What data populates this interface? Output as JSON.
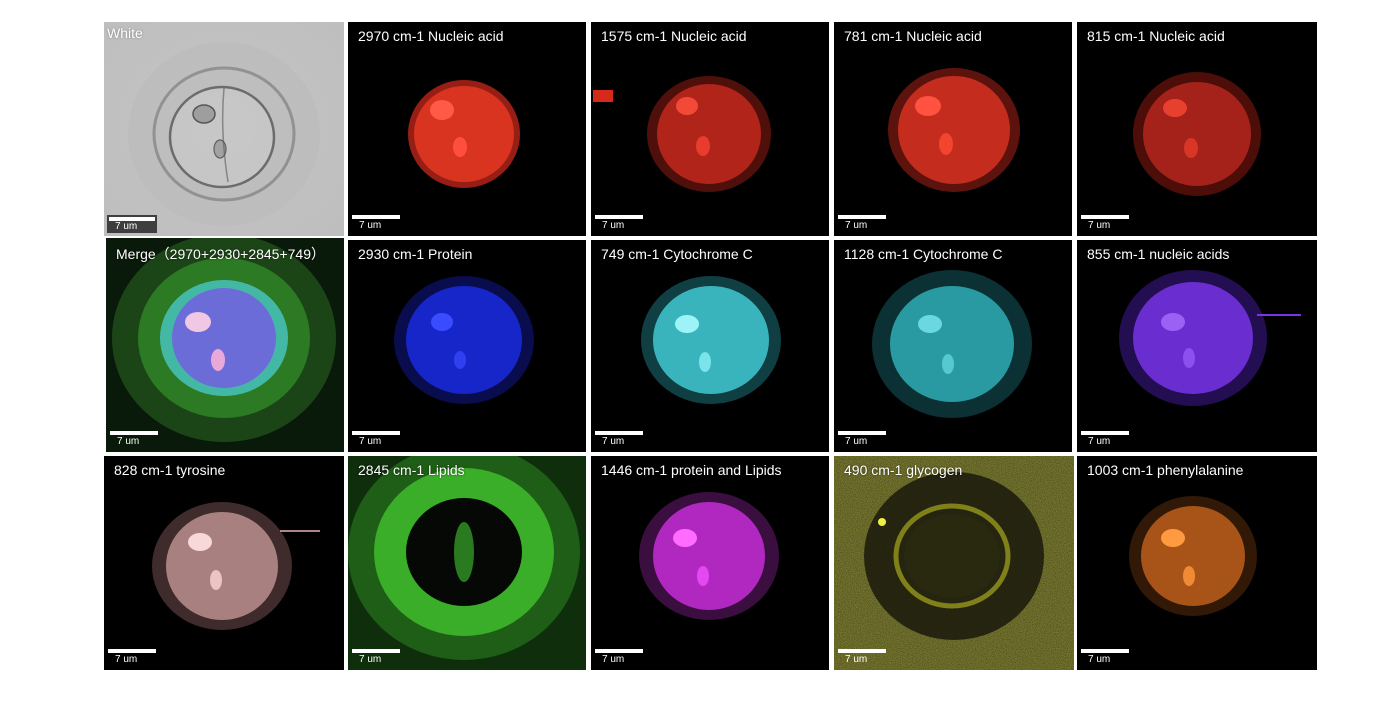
{
  "scale_label": "7 um",
  "panels": [
    {
      "label": "White",
      "color": "#c8c8c8"
    },
    {
      "label": "2970 cm-1 Nucleic acid",
      "color": "#e0301e"
    },
    {
      "label": "1575 cm-1 Nucleic acid",
      "color": "#d42a1c"
    },
    {
      "label": "781 cm-1 Nucleic acid",
      "color": "#e0301e"
    },
    {
      "label": "815 cm-1 Nucleic acid",
      "color": "#c8281c"
    },
    {
      "label": "Merge（2970+2930+2845+749）",
      "color": "#6a6ae0"
    },
    {
      "label": "2930 cm-1 Protein",
      "color": "#1e2ae6"
    },
    {
      "label": "749 cm-1 Cytochrome C",
      "color": "#3cc4cc"
    },
    {
      "label": "1128 cm-1 Cytochrome C",
      "color": "#2eb4bc"
    },
    {
      "label": "855 cm-1 nucleic acids",
      "color": "#7a34e0"
    },
    {
      "label": "828 cm-1 tyrosine",
      "color": "#d8a8a8"
    },
    {
      "label": "2845 cm-1 Lipids",
      "color": "#3cbc2a"
    },
    {
      "label": "1446 cm-1 protein and Lipids",
      "color": "#c830d8"
    },
    {
      "label": "490 cm-1 glycogen",
      "color": "#c8c820"
    },
    {
      "label": "1003 cm-1 phenylalanine",
      "color": "#e07820"
    }
  ]
}
